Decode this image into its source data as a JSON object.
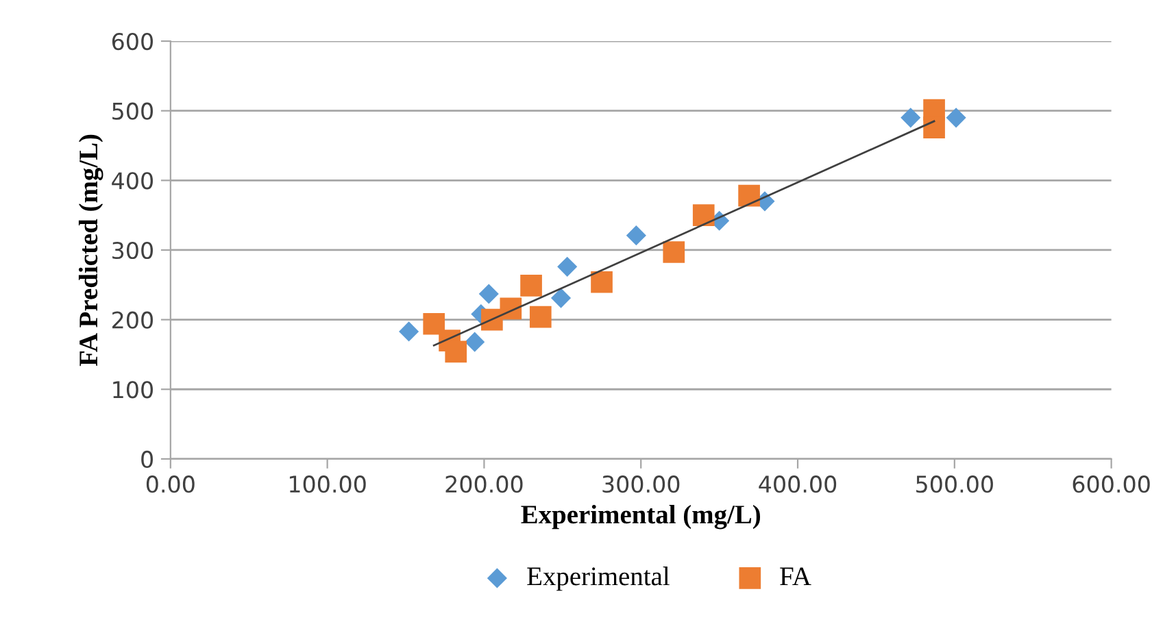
{
  "chart_data": {
    "type": "scatter",
    "xlabel": "Experimental (mg/L)",
    "ylabel": "FA Predicted (mg/L)",
    "xlim": [
      0,
      600
    ],
    "xticks": [
      {
        "value": 0,
        "label": "0.00"
      },
      {
        "value": 100,
        "label": "100.00"
      },
      {
        "value": 200,
        "label": "200.00"
      },
      {
        "value": 300,
        "label": "300.00"
      },
      {
        "value": 400,
        "label": "400.00"
      },
      {
        "value": 500,
        "label": "500.00"
      },
      {
        "value": 600,
        "label": "600.00"
      }
    ],
    "ylim": [
      0,
      600
    ],
    "yticks": [
      0,
      100,
      200,
      300,
      400,
      500,
      600
    ],
    "grid": "y",
    "legend": "bottom",
    "series": [
      {
        "name": "Experimental",
        "color": "#5b9bd5",
        "marker": "diamond",
        "x": [
          152,
          194,
          198,
          203,
          212,
          249,
          253,
          297,
          350,
          379,
          472,
          501
        ],
        "values": [
          183,
          168,
          208,
          237,
          null,
          231,
          276,
          321,
          342,
          370,
          490,
          490
        ]
      },
      {
        "name": "FA",
        "color": "#ed7d31",
        "marker": "square",
        "x": [
          168,
          171,
          178,
          182,
          205,
          217,
          230,
          236,
          275,
          321,
          340,
          369,
          487,
          487
        ],
        "values": [
          194,
          null,
          170,
          154,
          200,
          216,
          249,
          204,
          254,
          297,
          350,
          378,
          501,
          476
        ]
      },
      {
        "type": "line",
        "color": "#404040",
        "marker": "none",
        "x": [
          168,
          487
        ],
        "values": [
          163,
          485
        ]
      }
    ]
  }
}
